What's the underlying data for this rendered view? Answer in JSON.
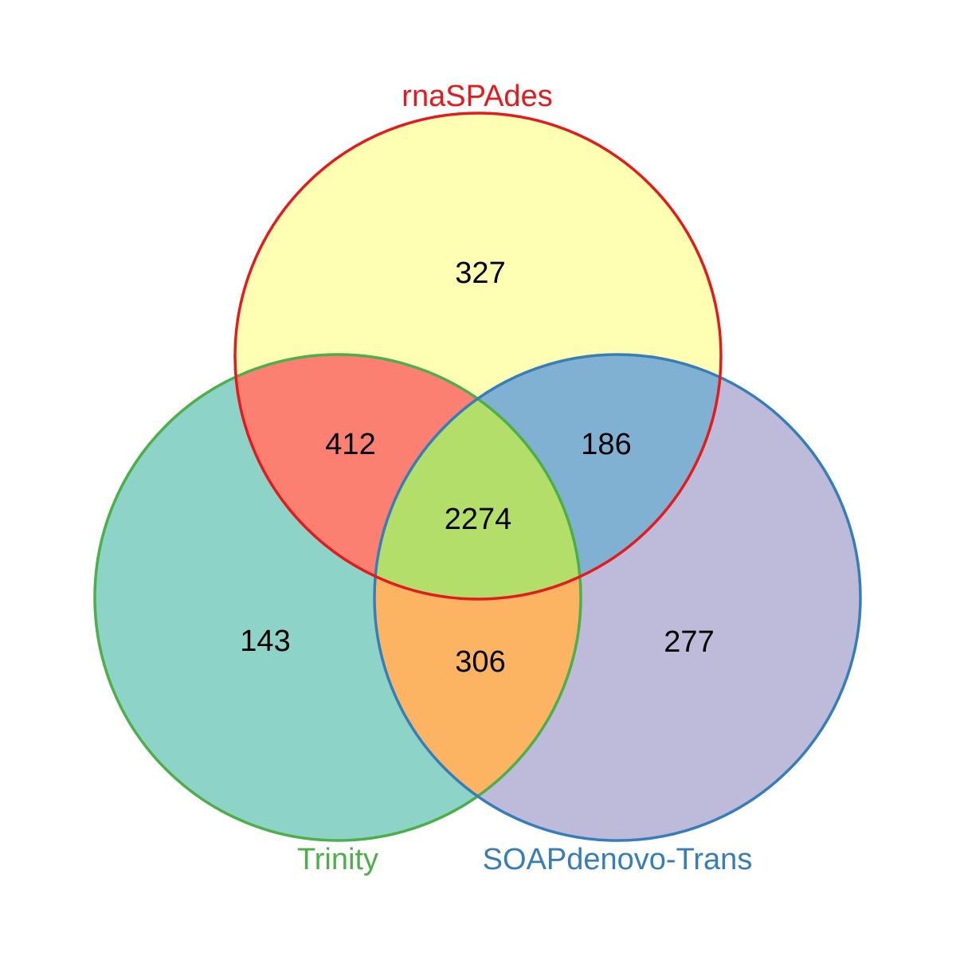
{
  "sets": {
    "rnaspades": {
      "name": "rnaSPAdes",
      "fill": "#FFFFB3",
      "stroke": "#E41A1C"
    },
    "trinity": {
      "name": "Trinity",
      "fill": "#8DD3C7",
      "stroke": "#4DAF4A"
    },
    "soap": {
      "name": "SOAPdenovo-Trans",
      "fill": "#BEBADA",
      "stroke": "#377EB8"
    }
  },
  "regions": {
    "rnaspades_only": {
      "count": "327",
      "fill": "#FFFFB3"
    },
    "rnaspades_trinity": {
      "count": "412",
      "fill": "#FB8072"
    },
    "rnaspades_soap": {
      "count": "186",
      "fill": "#80B1D3"
    },
    "all_three": {
      "count": "2274",
      "fill": "#B3DE69"
    },
    "trinity_only": {
      "count": "143",
      "fill": "#8DD3C7"
    },
    "trinity_soap": {
      "count": "306",
      "fill": "#FDB462"
    },
    "soap_only": {
      "count": "277",
      "fill": "#BEBADA"
    }
  }
}
